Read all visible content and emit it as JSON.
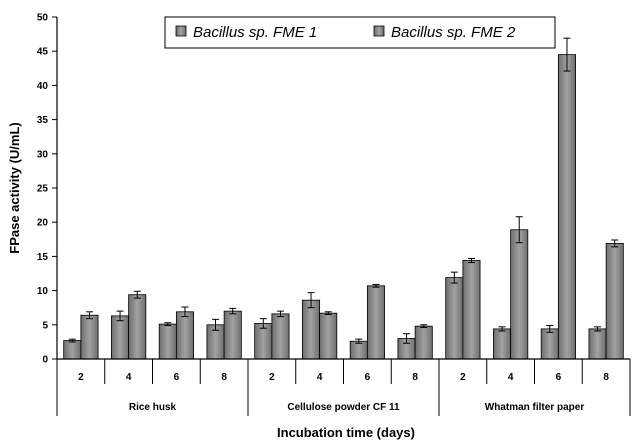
{
  "chart_data": {
    "type": "bar",
    "xlabel": "Incubation time (days)",
    "ylabel": "FPase activity (U/mL)",
    "ylim": [
      0,
      50
    ],
    "yticks": [
      0,
      5,
      10,
      15,
      20,
      25,
      30,
      35,
      40,
      45,
      50
    ],
    "grid": false,
    "legend_position": "top-right",
    "groups": [
      {
        "label": "Rice husk",
        "categories": [
          "2",
          "4",
          "6",
          "8"
        ]
      },
      {
        "label": "Cellulose powder CF 11",
        "categories": [
          "2",
          "4",
          "6",
          "8"
        ]
      },
      {
        "label": "Whatman filter paper",
        "categories": [
          "2",
          "4",
          "6",
          "8"
        ]
      }
    ],
    "series": [
      {
        "name": "Bacillus sp. FME 1",
        "color": "#8c8c8c",
        "values": [
          2.7,
          6.3,
          5.1,
          5.0,
          5.2,
          8.6,
          2.6,
          3.0,
          11.9,
          4.4,
          4.4,
          4.4
        ],
        "errors": [
          0.2,
          0.7,
          0.2,
          0.8,
          0.7,
          1.1,
          0.3,
          0.7,
          0.8,
          0.3,
          0.5,
          0.3
        ]
      },
      {
        "name": "Bacillus sp. FME 2",
        "color": "#8c8c8c",
        "values": [
          6.4,
          9.4,
          6.9,
          7.0,
          6.6,
          6.7,
          10.7,
          4.8,
          14.4,
          18.9,
          44.5,
          16.9
        ],
        "errors": [
          0.5,
          0.5,
          0.7,
          0.4,
          0.4,
          0.2,
          0.2,
          0.2,
          0.3,
          1.9,
          2.4,
          0.5
        ]
      }
    ]
  }
}
